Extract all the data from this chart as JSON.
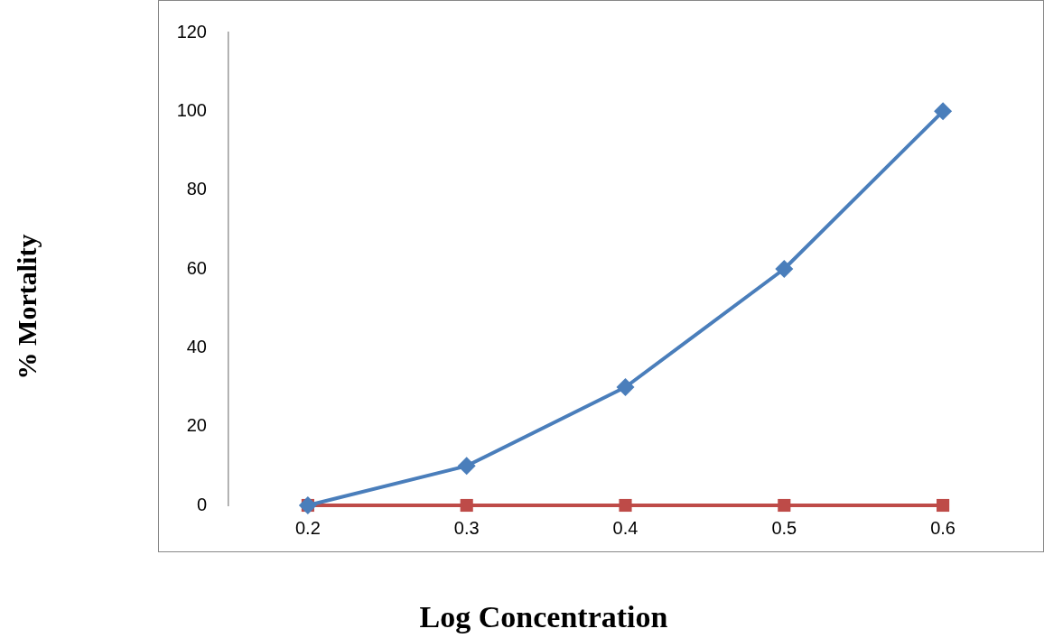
{
  "chart_data": {
    "type": "line",
    "xlabel": "Log Concentration",
    "ylabel": "% Mortality",
    "categories": [
      "0.2",
      "0.3",
      "0.4",
      "0.5",
      "0.6"
    ],
    "series": [
      {
        "color": "#4a7ebb",
        "marker": "diamond",
        "values": [
          0,
          10,
          30,
          60,
          100
        ]
      },
      {
        "color": "#be4b48",
        "marker": "square",
        "values": [
          0,
          0,
          0,
          0,
          0
        ]
      }
    ],
    "ylim": [
      0,
      120
    ],
    "yticks": [
      0,
      20,
      40,
      60,
      80,
      100,
      120
    ],
    "grid": false,
    "legend": false
  }
}
